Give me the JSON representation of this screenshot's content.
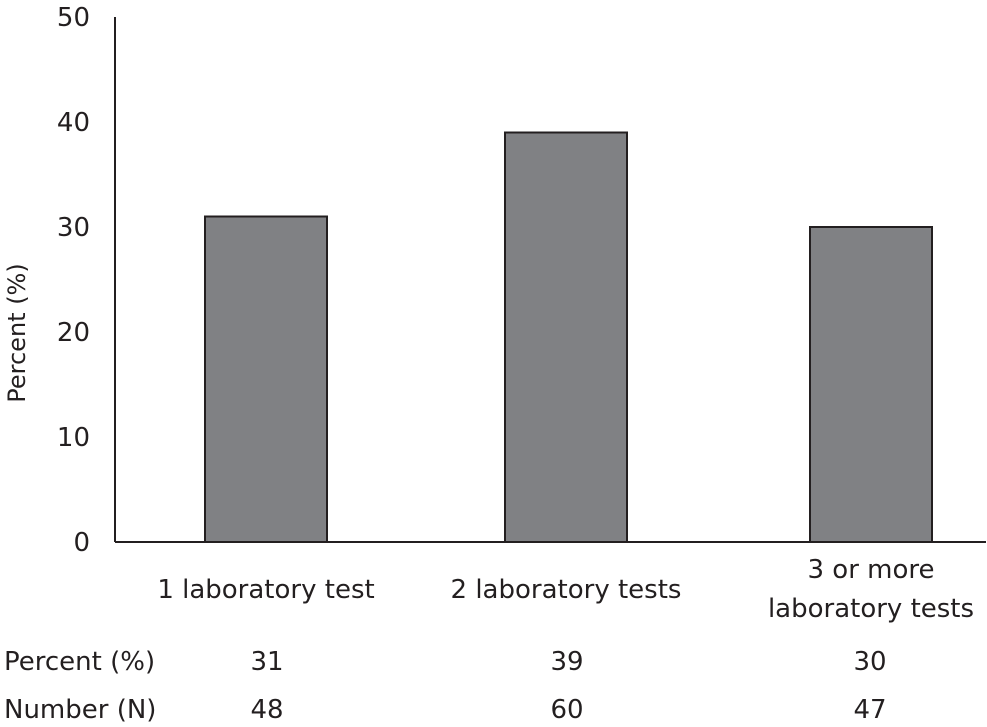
{
  "chart_data": {
    "type": "bar",
    "ylabel": "Percent (%)",
    "xlabel": "",
    "title": "",
    "ylim": [
      0,
      50
    ],
    "yticks": [
      0,
      10,
      20,
      30,
      40,
      50
    ],
    "grid": false,
    "bar_color": "#808184",
    "bar_edge_color": "#231f20",
    "categories": [
      [
        "1 laboratory test"
      ],
      [
        "2 laboratory tests"
      ],
      [
        "3 or more",
        "laboratory tests"
      ]
    ],
    "values": [
      31,
      39,
      30
    ],
    "table": {
      "rows": [
        {
          "label": "Percent (%)",
          "values": [
            "31",
            "39",
            "30"
          ]
        },
        {
          "label": "Number (N)",
          "values": [
            "48",
            "60",
            "47"
          ]
        }
      ]
    }
  }
}
